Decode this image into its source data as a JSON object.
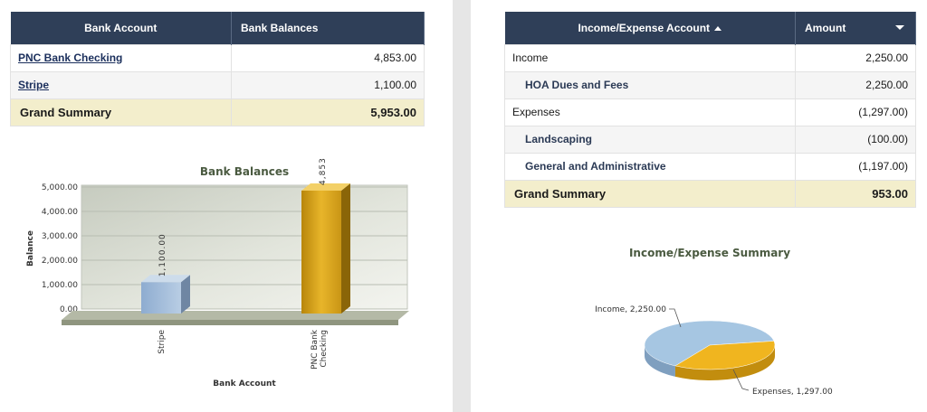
{
  "bank_table": {
    "headers": [
      "Bank Account",
      "Bank Balances"
    ],
    "rows": [
      {
        "account": "PNC Bank Checking",
        "balance": "4,853.00"
      },
      {
        "account": "Stripe",
        "balance": "1,100.00"
      }
    ],
    "grand": {
      "label": "Grand Summary",
      "value": "5,953.00"
    }
  },
  "ie_table": {
    "headers": [
      "Income/Expense Account",
      "Amount"
    ],
    "rows": [
      {
        "label": "Income",
        "amount": "2,250.00",
        "indent": false
      },
      {
        "label": "HOA Dues and Fees",
        "amount": "2,250.00",
        "indent": true
      },
      {
        "label": "Expenses",
        "amount": "(1,297.00)",
        "indent": false
      },
      {
        "label": "Landscaping",
        "amount": "(100.00)",
        "indent": true
      },
      {
        "label": "General and Administrative",
        "amount": "(1,197.00)",
        "indent": true
      }
    ],
    "grand": {
      "label": "Grand Summary",
      "value": "953.00"
    }
  },
  "chart_data": [
    {
      "type": "bar",
      "title": "Bank Balances",
      "xlabel": "Bank Account",
      "ylabel": "Balance",
      "categories": [
        "Stripe",
        "PNC Bank Checking"
      ],
      "values": [
        1100,
        4853
      ],
      "value_labels": [
        "1,100.00",
        "4,853.00"
      ],
      "ylim": [
        0,
        5000
      ],
      "yticks": [
        "0.00",
        "1,000.00",
        "2,000.00",
        "3,000.00",
        "4,000.00",
        "5,000.00"
      ],
      "colors": [
        "#9fbad8",
        "#d7a21c"
      ],
      "grid": true
    },
    {
      "type": "pie",
      "title": "Income/Expense Summary",
      "slices": [
        {
          "label": "Income",
          "value": 2250,
          "display": "Income, 2,250.00",
          "color": "#a6c6e2"
        },
        {
          "label": "Expenses",
          "value": 1297,
          "display": "Expenses, 1,297.00",
          "color": "#f0b51f"
        }
      ]
    }
  ]
}
